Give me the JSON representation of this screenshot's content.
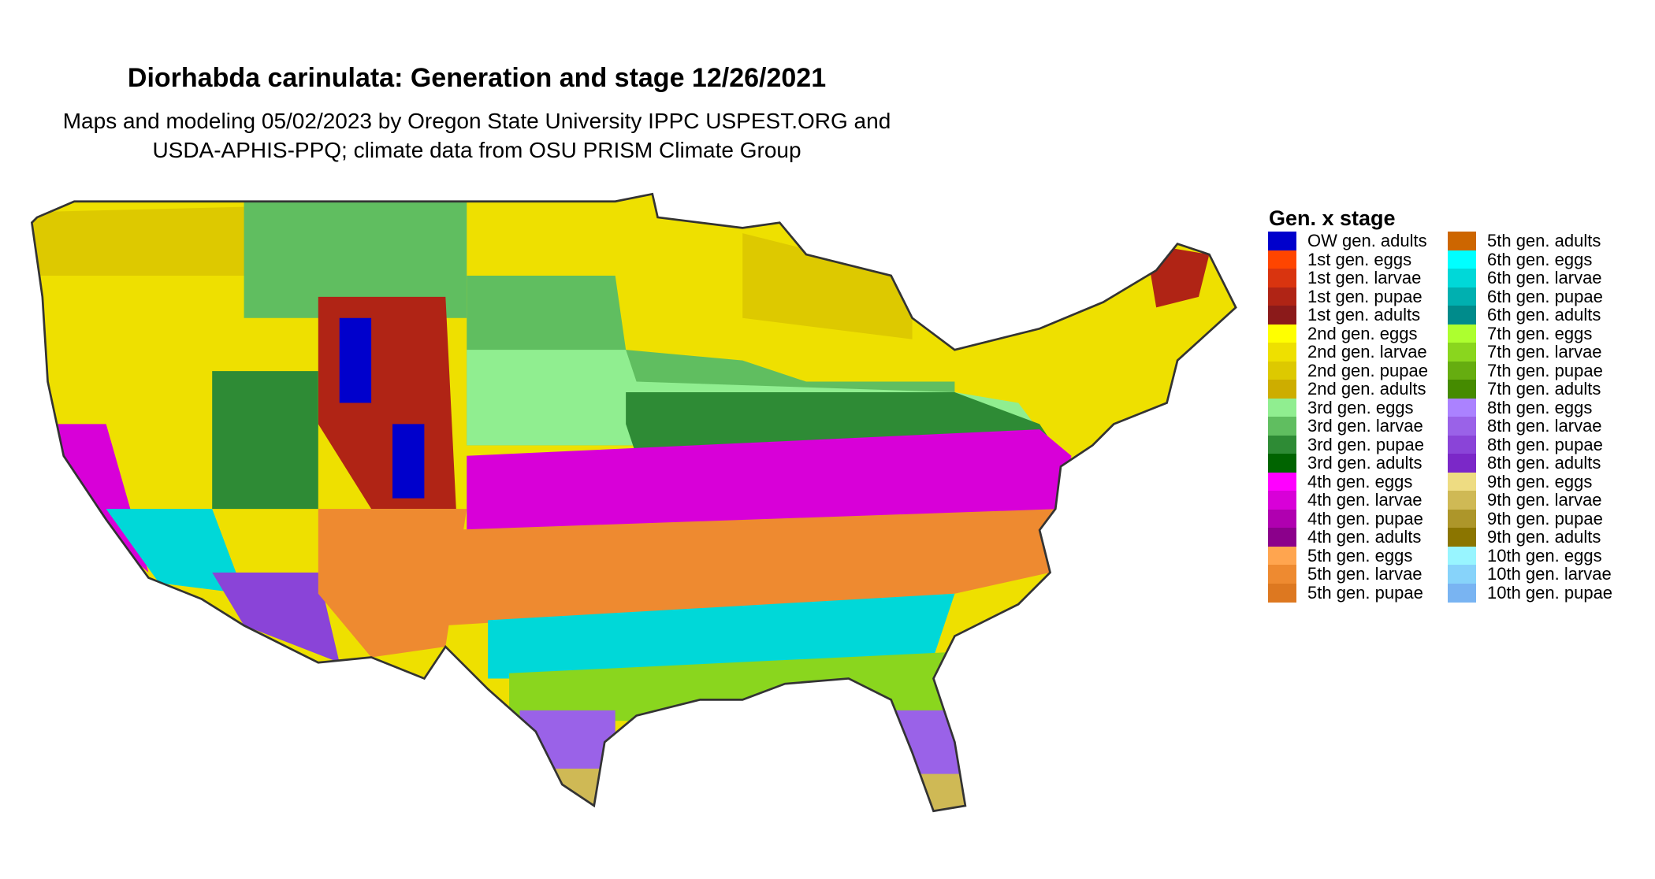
{
  "title": "Diorhabda carinulata: Generation and stage 12/26/2021",
  "subtitle_line1": "Maps and modeling 05/02/2023 by Oregon State University IPPC USPEST.ORG and",
  "subtitle_line2": "USDA-APHIS-PPQ; climate data from OSU PRISM Climate Group",
  "legend": {
    "title": "Gen. x stage",
    "items": [
      {
        "label": "OW gen. adults",
        "color": "#0000cc"
      },
      {
        "label": "1st gen. eggs",
        "color": "#ff4500"
      },
      {
        "label": "1st gen. larvae",
        "color": "#d9340f"
      },
      {
        "label": "1st gen. pupae",
        "color": "#b02415"
      },
      {
        "label": "1st gen. adults",
        "color": "#8b1a1a"
      },
      {
        "label": "2nd gen. eggs",
        "color": "#ffff00"
      },
      {
        "label": "2nd gen. larvae",
        "color": "#eee000"
      },
      {
        "label": "2nd gen. pupae",
        "color": "#ddc900"
      },
      {
        "label": "2nd gen. adults",
        "color": "#cdad00"
      },
      {
        "label": "3rd gen. eggs",
        "color": "#90ee90"
      },
      {
        "label": "3rd gen. larvae",
        "color": "#60be60"
      },
      {
        "label": "3rd gen. pupae",
        "color": "#2e8b35"
      },
      {
        "label": "3rd gen. adults",
        "color": "#006400"
      },
      {
        "label": "4th gen. eggs",
        "color": "#ff00ff"
      },
      {
        "label": "4th gen. larvae",
        "color": "#d800d8"
      },
      {
        "label": "4th gen. pupae",
        "color": "#b000b0"
      },
      {
        "label": "4th gen. adults",
        "color": "#8b008b"
      },
      {
        "label": "5th gen. eggs",
        "color": "#ffa54f"
      },
      {
        "label": "5th gen. larvae",
        "color": "#ee8a30"
      },
      {
        "label": "5th gen. pupae",
        "color": "#dd7820"
      },
      {
        "label": "5th gen. adults",
        "color": "#cd6600"
      },
      {
        "label": "6th gen. eggs",
        "color": "#00ffff"
      },
      {
        "label": "6th gen. larvae",
        "color": "#00d8d8"
      },
      {
        "label": "6th gen. pupae",
        "color": "#00b0b0"
      },
      {
        "label": "6th gen. adults",
        "color": "#008b8b"
      },
      {
        "label": "7th gen. eggs",
        "color": "#adff2f"
      },
      {
        "label": "7th gen. larvae",
        "color": "#8ad61e"
      },
      {
        "label": "7th gen. pupae",
        "color": "#66ad10"
      },
      {
        "label": "7th gen. adults",
        "color": "#458b00"
      },
      {
        "label": "8th gen. eggs",
        "color": "#ab82ff"
      },
      {
        "label": "8th gen. larvae",
        "color": "#9a62e8"
      },
      {
        "label": "8th gen. pupae",
        "color": "#8a44d8"
      },
      {
        "label": "8th gen. adults",
        "color": "#7b28c8"
      },
      {
        "label": "9th gen. eggs",
        "color": "#eedc82"
      },
      {
        "label": "9th gen. larvae",
        "color": "#cfb955"
      },
      {
        "label": "9th gen. pupae",
        "color": "#ad962a"
      },
      {
        "label": "9th gen. adults",
        "color": "#8b7500"
      },
      {
        "label": "10th gen. eggs",
        "color": "#98f5ff"
      },
      {
        "label": "10th gen. larvae",
        "color": "#87d3fa"
      },
      {
        "label": "10th gen. pupae",
        "color": "#79b4f2"
      }
    ]
  }
}
